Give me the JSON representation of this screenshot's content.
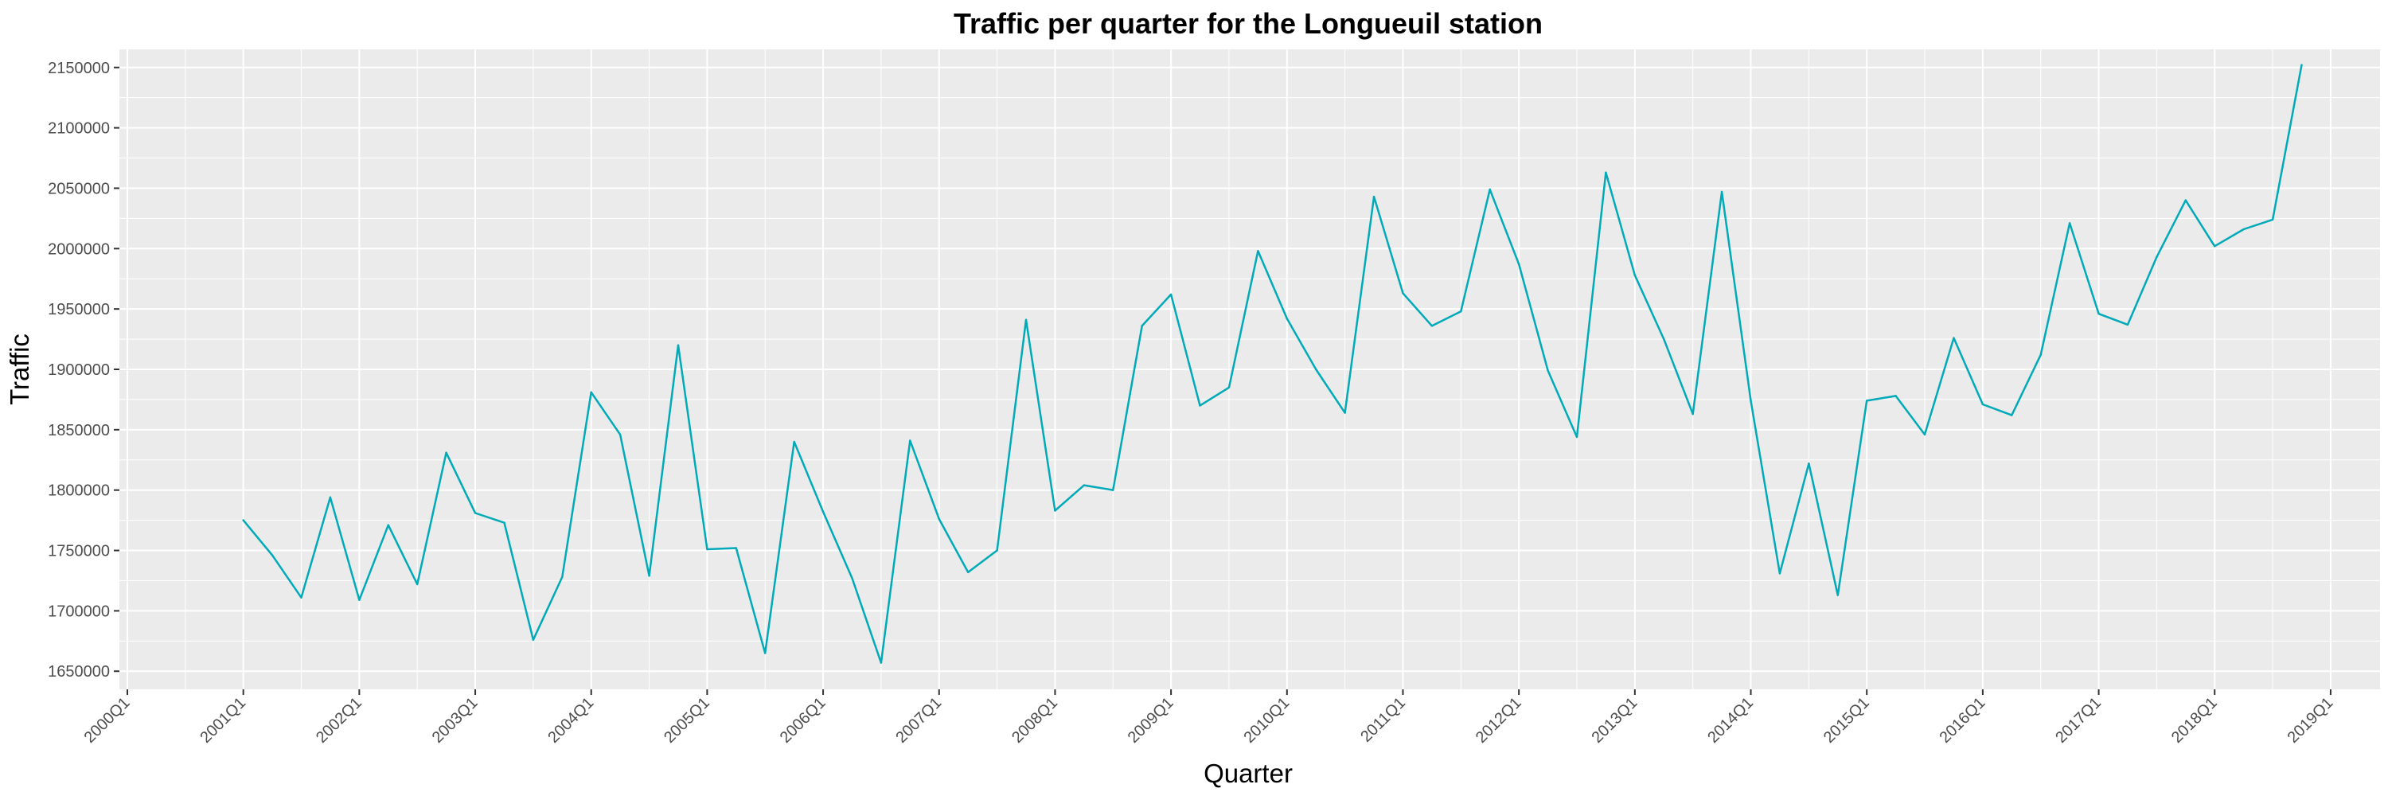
{
  "chart_data": {
    "type": "line",
    "title": "Traffic per quarter for the Longueuil station",
    "xlabel": "Quarter",
    "ylabel": "Traffic",
    "x_tick_labels": [
      "2000Q1",
      "2001Q1",
      "2002Q1",
      "2003Q1",
      "2004Q1",
      "2005Q1",
      "2006Q1",
      "2007Q1",
      "2008Q1",
      "2009Q1",
      "2010Q1",
      "2011Q1",
      "2012Q1",
      "2013Q1",
      "2014Q1",
      "2015Q1",
      "2016Q1",
      "2017Q1",
      "2018Q1",
      "2019Q1"
    ],
    "y_tick_labels": [
      "1650000",
      "1700000",
      "1750000",
      "1800000",
      "1850000",
      "1900000",
      "1950000",
      "2000000",
      "2050000",
      "2100000",
      "2150000"
    ],
    "ylim": [
      1635000,
      2165000
    ],
    "grid": true,
    "series_color": "#00aab8",
    "background_color": "#ebebeb",
    "series": [
      {
        "x": [
          "2001Q1",
          "2001Q2",
          "2001Q3",
          "2001Q4",
          "2002Q1",
          "2002Q2",
          "2002Q3",
          "2002Q4",
          "2003Q1",
          "2003Q2",
          "2003Q3",
          "2003Q4",
          "2004Q1",
          "2004Q2",
          "2004Q3",
          "2004Q4",
          "2005Q1",
          "2005Q2",
          "2005Q3",
          "2005Q4",
          "2006Q1",
          "2006Q2",
          "2006Q3",
          "2006Q4",
          "2007Q1",
          "2007Q2",
          "2007Q3",
          "2007Q4",
          "2008Q1",
          "2008Q2",
          "2008Q3",
          "2008Q4",
          "2009Q1",
          "2009Q2",
          "2009Q3",
          "2009Q4",
          "2010Q1",
          "2010Q2",
          "2010Q3",
          "2010Q4",
          "2011Q1",
          "2011Q2",
          "2011Q3",
          "2011Q4",
          "2012Q1",
          "2012Q2",
          "2012Q3",
          "2012Q4",
          "2013Q1",
          "2013Q2",
          "2013Q3",
          "2013Q4",
          "2014Q1",
          "2014Q2",
          "2014Q3",
          "2014Q4",
          "2015Q1",
          "2015Q2",
          "2015Q3",
          "2015Q4",
          "2016Q1",
          "2016Q2",
          "2016Q3",
          "2016Q4",
          "2017Q1",
          "2017Q2",
          "2017Q3",
          "2017Q4",
          "2018Q1",
          "2018Q2",
          "2018Q3",
          "2018Q4"
        ],
        "values": [
          1775000,
          1746000,
          1711000,
          1794000,
          1709000,
          1771000,
          1722000,
          1831000,
          1781000,
          1773000,
          1676000,
          1728000,
          1881000,
          1846000,
          1729000,
          1920000,
          1751000,
          1752000,
          1665000,
          1840000,
          1782000,
          1727000,
          1657000,
          1841000,
          1776000,
          1732000,
          1750000,
          1941000,
          1783000,
          1804000,
          1800000,
          1936000,
          1962000,
          1870000,
          1885000,
          1998000,
          1942000,
          1900000,
          1864000,
          2043000,
          1963000,
          1936000,
          1948000,
          2049000,
          1987000,
          1899000,
          1844000,
          2063000,
          1978000,
          1925000,
          1863000,
          2047000,
          1874000,
          1731000,
          1822000,
          1713000,
          1874000,
          1878000,
          1846000,
          1926000,
          1871000,
          1862000,
          1912000,
          2021000,
          1946000,
          1937000,
          1993000,
          2040000,
          2002000,
          2016000,
          2024000,
          2152000
        ]
      }
    ]
  }
}
